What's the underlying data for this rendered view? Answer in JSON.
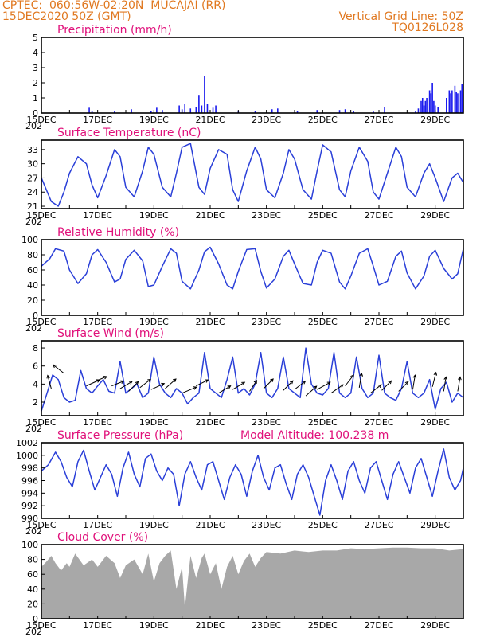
{
  "header": {
    "center": "CPTEC:  060:56W-02:20N  MUCAJAI (RR)",
    "date": "15DEC2020 50Z (GMT)",
    "grid_note": "Vertical Grid Line: 50Z",
    "code": "TQ0126L028"
  },
  "x_axis": {
    "days": 15,
    "ticks": [
      "15DEC",
      "17DEC",
      "19DEC",
      "21DEC",
      "23DEC",
      "25DEC",
      "27DEC",
      "29DEC"
    ],
    "year_fragment": "202"
  },
  "chart_data": [
    {
      "type": "bar",
      "title": "Precipitation (mm/h)",
      "ylim": [
        0,
        5
      ],
      "yticks": [
        "0",
        "1",
        "2",
        "3",
        "4",
        "5"
      ],
      "color": "#1a1aee",
      "bars": [
        [
          1.7,
          0.35
        ],
        [
          1.8,
          0.15
        ],
        [
          2.6,
          0.1
        ],
        [
          3.2,
          0.25
        ],
        [
          3.9,
          0.15
        ],
        [
          4.1,
          0.35
        ],
        [
          4.3,
          0.2
        ],
        [
          4.9,
          0.5
        ],
        [
          5.0,
          0.25
        ],
        [
          5.1,
          0.6
        ],
        [
          5.3,
          0.3
        ],
        [
          5.5,
          0.4
        ],
        [
          5.6,
          1.2
        ],
        [
          5.7,
          0.5
        ],
        [
          5.8,
          2.45
        ],
        [
          5.9,
          0.6
        ],
        [
          6.1,
          0.35
        ],
        [
          6.2,
          0.5
        ],
        [
          7.0,
          0.1
        ],
        [
          7.6,
          0.15
        ],
        [
          8.2,
          0.25
        ],
        [
          8.4,
          0.3
        ],
        [
          9.1,
          0.15
        ],
        [
          9.8,
          0.2
        ],
        [
          10.6,
          0.2
        ],
        [
          10.8,
          0.25
        ],
        [
          11.1,
          0.1
        ],
        [
          11.8,
          0.1
        ],
        [
          12.2,
          0.4
        ],
        [
          13.3,
          0.1
        ],
        [
          13.4,
          0.3
        ],
        [
          13.5,
          0.8
        ],
        [
          13.55,
          1.0
        ],
        [
          13.6,
          0.5
        ],
        [
          13.65,
          0.8
        ],
        [
          13.7,
          1.0
        ],
        [
          13.8,
          1.5
        ],
        [
          13.85,
          1.3
        ],
        [
          13.9,
          2.0
        ],
        [
          13.95,
          0.8
        ],
        [
          14.0,
          0.5
        ],
        [
          14.1,
          0.4
        ],
        [
          14.4,
          1.0
        ],
        [
          14.5,
          1.5
        ],
        [
          14.55,
          1.3
        ],
        [
          14.6,
          1.5
        ],
        [
          14.7,
          1.8
        ],
        [
          14.75,
          1.4
        ],
        [
          14.8,
          1.3
        ],
        [
          14.9,
          1.5
        ],
        [
          14.95,
          1.9
        ]
      ]
    },
    {
      "type": "line",
      "title": "Surface Temperature (nC)",
      "ylim": [
        20.5,
        35
      ],
      "yticks": [
        "21",
        "24",
        "27",
        "30",
        "33"
      ],
      "color": "#2a3fd8",
      "x": [
        0.0,
        0.35,
        0.6,
        0.8,
        1.0,
        1.3,
        1.6,
        1.8,
        2.0,
        2.3,
        2.6,
        2.8,
        3.0,
        3.3,
        3.6,
        3.8,
        4.0,
        4.3,
        4.6,
        4.8,
        5.0,
        5.3,
        5.6,
        5.8,
        6.0,
        6.3,
        6.6,
        6.8,
        7.0,
        7.3,
        7.6,
        7.8,
        8.0,
        8.3,
        8.6,
        8.8,
        9.0,
        9.3,
        9.6,
        9.8,
        10.0,
        10.3,
        10.6,
        10.8,
        11.0,
        11.3,
        11.6,
        11.8,
        12.0,
        12.3,
        12.6,
        12.8,
        13.0,
        13.3,
        13.6,
        13.8,
        14.0,
        14.3,
        14.6,
        14.8,
        15.0
      ],
      "values": [
        27.0,
        22.0,
        21.0,
        24.0,
        28.0,
        31.5,
        30.0,
        25.5,
        22.8,
        27.5,
        33.0,
        31.5,
        25.0,
        23.0,
        28.5,
        33.5,
        32.0,
        25.0,
        23.0,
        28.0,
        33.5,
        34.3,
        25.0,
        23.5,
        29.0,
        33.0,
        32.0,
        24.5,
        22.0,
        28.5,
        33.5,
        31.0,
        24.5,
        22.8,
        28.0,
        33.0,
        31.0,
        24.5,
        22.5,
        28.5,
        34.0,
        32.5,
        24.5,
        23.0,
        28.5,
        33.5,
        30.5,
        24.0,
        22.5,
        28.0,
        33.5,
        31.5,
        25.0,
        23.0,
        28.0,
        30.0,
        27.0,
        22.0,
        27.0,
        28.0,
        26.0
      ]
    },
    {
      "type": "line",
      "title": "Relative Humidity (%)",
      "ylim": [
        0,
        100
      ],
      "yticks": [
        "0",
        "20",
        "40",
        "60",
        "80",
        "100"
      ],
      "color": "#2a3fd8",
      "x": [
        0.0,
        0.3,
        0.5,
        0.8,
        1.0,
        1.3,
        1.6,
        1.8,
        2.0,
        2.3,
        2.6,
        2.8,
        3.0,
        3.3,
        3.6,
        3.8,
        4.0,
        4.3,
        4.6,
        4.8,
        5.0,
        5.3,
        5.6,
        5.8,
        6.0,
        6.3,
        6.6,
        6.8,
        7.0,
        7.3,
        7.6,
        7.8,
        8.0,
        8.3,
        8.6,
        8.8,
        9.0,
        9.3,
        9.6,
        9.8,
        10.0,
        10.3,
        10.6,
        10.8,
        11.0,
        11.3,
        11.6,
        11.8,
        12.0,
        12.3,
        12.6,
        12.8,
        13.0,
        13.3,
        13.6,
        13.8,
        14.0,
        14.3,
        14.6,
        14.8,
        15.0
      ],
      "values": [
        65,
        75,
        88,
        85,
        60,
        42,
        55,
        80,
        87,
        70,
        44,
        48,
        74,
        86,
        72,
        38,
        40,
        65,
        88,
        82,
        45,
        35,
        60,
        84,
        90,
        68,
        40,
        35,
        58,
        87,
        88,
        58,
        36,
        48,
        78,
        86,
        68,
        42,
        40,
        70,
        86,
        82,
        44,
        35,
        52,
        82,
        88,
        65,
        40,
        45,
        78,
        85,
        56,
        35,
        52,
        78,
        86,
        62,
        48,
        55,
        88
      ]
    },
    {
      "type": "line",
      "title": "Surface Wind (m/s)",
      "ylim": [
        0.5,
        8.8
      ],
      "yticks": [
        "2",
        "4",
        "6",
        "8"
      ],
      "color": "#2a3fd8",
      "x": [
        0.0,
        0.2,
        0.4,
        0.6,
        0.8,
        1.0,
        1.2,
        1.4,
        1.6,
        1.8,
        2.0,
        2.2,
        2.4,
        2.6,
        2.8,
        3.0,
        3.2,
        3.4,
        3.6,
        3.8,
        4.0,
        4.2,
        4.4,
        4.6,
        4.8,
        5.0,
        5.2,
        5.4,
        5.6,
        5.8,
        6.0,
        6.2,
        6.4,
        6.6,
        6.8,
        7.0,
        7.2,
        7.4,
        7.6,
        7.8,
        8.0,
        8.2,
        8.4,
        8.6,
        8.8,
        9.0,
        9.2,
        9.4,
        9.6,
        9.8,
        10.0,
        10.2,
        10.4,
        10.6,
        10.8,
        11.0,
        11.2,
        11.4,
        11.6,
        11.8,
        12.0,
        12.2,
        12.4,
        12.6,
        12.8,
        13.0,
        13.2,
        13.4,
        13.6,
        13.8,
        14.0,
        14.2,
        14.4,
        14.6,
        14.8,
        15.0
      ],
      "values": [
        1.0,
        3.0,
        5.0,
        4.5,
        2.5,
        2.0,
        2.2,
        5.5,
        3.5,
        3.0,
        3.8,
        4.5,
        3.2,
        3.0,
        6.5,
        3.0,
        3.5,
        4.0,
        2.5,
        3.0,
        7.0,
        4.0,
        3.0,
        2.5,
        3.5,
        3.0,
        1.8,
        2.5,
        3.0,
        7.5,
        3.5,
        3.0,
        2.5,
        4.5,
        7.0,
        3.0,
        3.5,
        2.8,
        4.0,
        7.5,
        3.0,
        2.5,
        3.5,
        7.0,
        3.5,
        3.0,
        2.5,
        8.0,
        4.0,
        3.0,
        2.8,
        3.5,
        7.5,
        3.0,
        2.5,
        3.0,
        7.0,
        3.5,
        2.5,
        3.0,
        7.2,
        3.0,
        2.5,
        2.2,
        3.5,
        6.5,
        3.0,
        2.5,
        3.0,
        4.5,
        1.2,
        3.5,
        4.2,
        2.0,
        3.0,
        2.5
      ]
    },
    {
      "type": "line",
      "title": "Surface Pressure (hPa)",
      "annotation": "Model Altitude: 100.238  m",
      "ylim": [
        990,
        1002
      ],
      "yticks": [
        "990",
        "992",
        "994",
        "996",
        "998",
        "1000",
        "1002"
      ],
      "color": "#2a3fd8",
      "x": [
        0.0,
        0.25,
        0.5,
        0.7,
        0.9,
        1.1,
        1.3,
        1.5,
        1.7,
        1.9,
        2.1,
        2.3,
        2.5,
        2.7,
        2.9,
        3.1,
        3.3,
        3.5,
        3.7,
        3.9,
        4.1,
        4.3,
        4.5,
        4.7,
        4.9,
        5.1,
        5.3,
        5.5,
        5.7,
        5.9,
        6.1,
        6.3,
        6.5,
        6.7,
        6.9,
        7.1,
        7.3,
        7.5,
        7.7,
        7.9,
        8.1,
        8.3,
        8.5,
        8.7,
        8.9,
        9.1,
        9.3,
        9.5,
        9.7,
        9.9,
        10.1,
        10.3,
        10.5,
        10.7,
        10.9,
        11.1,
        11.3,
        11.5,
        11.7,
        11.9,
        12.1,
        12.3,
        12.5,
        12.7,
        12.9,
        13.1,
        13.3,
        13.5,
        13.7,
        13.9,
        14.1,
        14.3,
        14.5,
        14.7,
        14.9,
        15.0
      ],
      "values": [
        997.5,
        998.5,
        1000.5,
        999.0,
        996.5,
        995.0,
        999.0,
        1000.8,
        997.5,
        994.5,
        996.5,
        998.5,
        997.0,
        993.5,
        998.0,
        1000.5,
        997.0,
        995.0,
        999.5,
        1000.2,
        997.5,
        996.0,
        998.0,
        997.0,
        992.0,
        997.0,
        999.0,
        996.5,
        994.5,
        998.5,
        999.0,
        996.0,
        993.0,
        996.5,
        998.5,
        997.0,
        993.5,
        997.5,
        1000.0,
        996.5,
        994.5,
        998.0,
        998.5,
        995.5,
        993.0,
        997.0,
        998.5,
        996.5,
        993.5,
        990.5,
        996.0,
        998.5,
        996.0,
        993.0,
        997.5,
        999.0,
        996.0,
        994.0,
        998.0,
        999.0,
        996.0,
        993.0,
        997.0,
        999.0,
        996.5,
        994.0,
        998.0,
        999.5,
        996.5,
        993.5,
        997.5,
        1001.0,
        996.5,
        994.5,
        996.0,
        998.0
      ]
    },
    {
      "type": "area",
      "title": "Cloud Cover (%)",
      "ylim": [
        0,
        100
      ],
      "yticks": [
        "0",
        "20",
        "40",
        "60",
        "80",
        "100"
      ],
      "color": "#a8a8a8",
      "x": [
        0.0,
        0.2,
        0.35,
        0.5,
        0.7,
        0.9,
        1.0,
        1.2,
        1.5,
        1.8,
        2.0,
        2.3,
        2.6,
        2.8,
        3.0,
        3.3,
        3.6,
        3.8,
        4.0,
        4.2,
        4.4,
        4.6,
        4.8,
        5.0,
        5.1,
        5.3,
        5.5,
        5.7,
        5.8,
        6.0,
        6.2,
        6.4,
        6.6,
        6.8,
        7.0,
        7.2,
        7.4,
        7.6,
        7.8,
        8.0,
        8.5,
        9.0,
        9.5,
        10.0,
        10.5,
        11.0,
        11.5,
        12.0,
        12.5,
        13.0,
        13.5,
        14.0,
        14.5,
        15.0
      ],
      "values": [
        70,
        78,
        85,
        75,
        65,
        75,
        70,
        88,
        72,
        80,
        70,
        85,
        75,
        55,
        72,
        80,
        60,
        88,
        50,
        75,
        85,
        92,
        40,
        70,
        15,
        85,
        55,
        82,
        88,
        60,
        75,
        40,
        70,
        85,
        60,
        78,
        88,
        70,
        82,
        90,
        88,
        92,
        90,
        92,
        92,
        95,
        94,
        95,
        96,
        96,
        95,
        95,
        92,
        94
      ]
    }
  ],
  "wind_arrows": {
    "color": "#000000",
    "arrows": [
      [
        0.35,
        3.5,
        -0.03,
        -0.11
      ],
      [
        0.8,
        5.2,
        -0.09,
        -0.07
      ],
      [
        1.6,
        3.8,
        0.11,
        -0.05
      ],
      [
        1.9,
        4.3,
        0.1,
        -0.04
      ],
      [
        2.5,
        3.8,
        0.1,
        -0.04
      ],
      [
        2.8,
        3.5,
        0.1,
        -0.06
      ],
      [
        3.1,
        3.2,
        0.08,
        -0.08
      ],
      [
        3.5,
        3.6,
        0.09,
        -0.07
      ],
      [
        3.9,
        3.4,
        0.11,
        -0.05
      ],
      [
        4.4,
        3.5,
        0.09,
        -0.08
      ],
      [
        5.0,
        3.0,
        0.12,
        -0.05
      ],
      [
        5.5,
        3.8,
        0.1,
        -0.05
      ],
      [
        6.3,
        3.0,
        0.1,
        -0.06
      ],
      [
        6.8,
        3.4,
        0.1,
        -0.06
      ],
      [
        7.4,
        3.2,
        0.06,
        -0.09
      ],
      [
        7.9,
        3.5,
        0.08,
        -0.08
      ],
      [
        8.6,
        3.3,
        0.08,
        -0.08
      ],
      [
        9.0,
        3.4,
        0.09,
        -0.07
      ],
      [
        9.4,
        2.7,
        0.09,
        -0.08
      ],
      [
        9.8,
        3.4,
        0.11,
        -0.06
      ],
      [
        10.3,
        3.0,
        0.1,
        -0.07
      ],
      [
        10.8,
        3.8,
        0.07,
        -0.09
      ],
      [
        11.3,
        3.6,
        0.02,
        -0.12
      ],
      [
        11.7,
        3.0,
        0.09,
        -0.07
      ],
      [
        12.1,
        3.3,
        0.08,
        -0.08
      ],
      [
        12.7,
        3.2,
        0.08,
        -0.08
      ],
      [
        13.2,
        3.4,
        0.02,
        -0.12
      ],
      [
        13.9,
        3.7,
        0.03,
        -0.12
      ],
      [
        14.3,
        3.2,
        0.02,
        -0.12
      ],
      [
        14.8,
        3.2,
        0.02,
        -0.12
      ]
    ]
  }
}
